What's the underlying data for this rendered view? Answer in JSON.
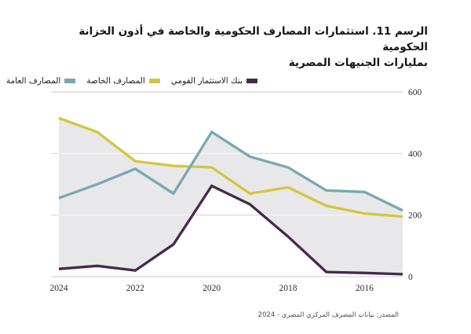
{
  "title": {
    "line1": "الرسم 11. استثمارات المصارف الحكومية والخاصة في أذون الخزانة الحكومية",
    "line2": "بمليارات الجنيهات المصرية"
  },
  "legend": {
    "items": [
      {
        "label": "بنك الاستثمار القومي",
        "color": "#46294B"
      },
      {
        "label": "المصارف الخاصة",
        "color": "#D5C53E"
      },
      {
        "label": "المصارف العامة",
        "color": "#79A8B1"
      }
    ]
  },
  "chart_data": {
    "type": "line",
    "title": "الرسم 11. استثمارات المصارف الحكومية والخاصة في أذون الخزانة الحكومية بمليارات الجنيهات المصرية",
    "x": [
      2024,
      2023,
      2022,
      2021,
      2020,
      2019,
      2018,
      2017,
      2016,
      2015
    ],
    "x_axis_reversed": true,
    "x_tick_labels": [
      "2024",
      "2022",
      "2020",
      "2018",
      "2016"
    ],
    "x_tick_years": [
      2024,
      2022,
      2020,
      2018,
      2016
    ],
    "y_ticks": [
      0,
      200,
      400,
      600
    ],
    "ylim": [
      0,
      600
    ],
    "grid": "horizontal",
    "legend_position": "top-right-of-plot",
    "band_fill": "#E8E8EA",
    "gridline_color": "#D8D8DB",
    "series": [
      {
        "name": "بنك الاستثمار القومي",
        "color": "#46294B",
        "values": [
          25,
          35,
          20,
          105,
          295,
          235,
          130,
          15,
          12,
          8
        ]
      },
      {
        "name": "المصارف الخاصة",
        "color": "#D5C53E",
        "values": [
          515,
          470,
          375,
          360,
          355,
          270,
          290,
          230,
          205,
          195
        ]
      },
      {
        "name": "المصارف العامة",
        "color": "#79A8B1",
        "values": [
          255,
          300,
          350,
          270,
          470,
          390,
          355,
          280,
          275,
          215
        ]
      }
    ]
  },
  "source": "المصدر: بيانات المصرف المركزي المصري - 2024"
}
